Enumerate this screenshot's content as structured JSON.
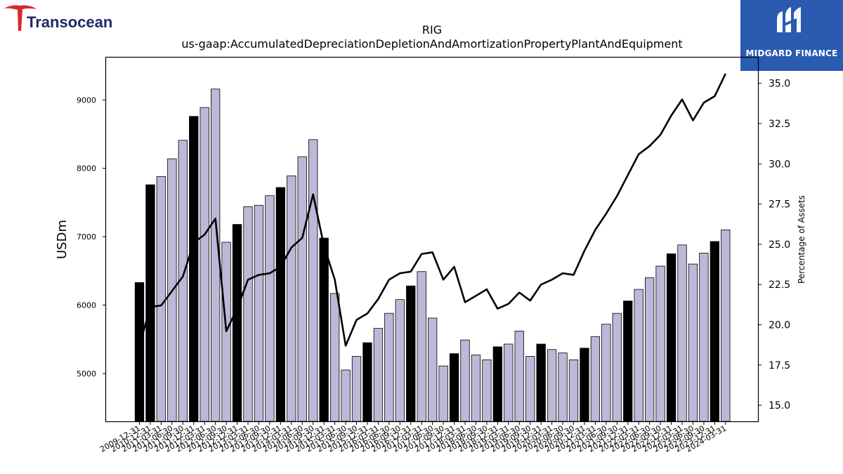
{
  "logos": {
    "left_brand": "Transocean",
    "right_brand": "MIDGARD FINANCE"
  },
  "chart_data": {
    "type": "bar",
    "title": "RIG",
    "subtitle": "us-gaap:AccumulatedDepreciationDepletionAndAmortizationPropertyPlantAndEquipment",
    "ylabel": "USDm",
    "y2label": "Percentage of Assets",
    "ylim": [
      4300,
      9620
    ],
    "y2lim": [
      14.0,
      36.6
    ],
    "yticks": [
      5000,
      6000,
      7000,
      8000,
      9000
    ],
    "y2ticks": [
      "15.0",
      "17.5",
      "20.0",
      "22.5",
      "25.0",
      "27.5",
      "30.0",
      "32.5",
      "35.0"
    ],
    "colors": {
      "annual": "#000000",
      "quarter": "#bcb8d8",
      "line": "#000000"
    },
    "categories": [
      "2009-12-31",
      "2010-12-31",
      "2011-03-31",
      "2011-06-30",
      "2011-09-30",
      "2011-12-31",
      "2012-03-31",
      "2012-06-30",
      "2012-09-30",
      "2012-12-31",
      "2013-03-31",
      "2013-06-30",
      "2013-09-30",
      "2013-12-31",
      "2014-03-31",
      "2014-06-30",
      "2014-09-30",
      "2014-12-31",
      "2015-03-31",
      "2015-06-30",
      "2015-09-30",
      "2015-12-31",
      "2016-03-31",
      "2016-06-30",
      "2016-09-30",
      "2016-12-31",
      "2017-03-31",
      "2017-06-30",
      "2017-09-30",
      "2017-12-31",
      "2018-03-31",
      "2018-06-30",
      "2018-09-30",
      "2018-12-31",
      "2019-03-31",
      "2019-06-30",
      "2019-09-30",
      "2019-12-31",
      "2020-03-31",
      "2020-06-30",
      "2020-09-30",
      "2020-12-31",
      "2021-03-31",
      "2021-06-30",
      "2021-09-30",
      "2021-12-31",
      "2022-03-31",
      "2022-06-30",
      "2022-09-30",
      "2022-12-31",
      "2023-03-31",
      "2023-06-30",
      "2023-09-30",
      "2023-12-31",
      "2024-03-31"
    ],
    "tick_labels": [
      "2009-12-31",
      "2010-12-31",
      "2011-03-31",
      "2011-06-30",
      "2011-09-30",
      "2011-12-31",
      "2012-03-31",
      "2012-06-30",
      "2012-09-30",
      "2012-12-31",
      "2013-03-31",
      "2013-06-30",
      "2013-09-30",
      "2013-12-31",
      "2014-03-31",
      "2014-06-30",
      "2014-09-30",
      "2014-12-31",
      "2015-03-31",
      "2015-06-30",
      "2015-09-30",
      "2015-12-31",
      "2016-03-31",
      "2016-06-30",
      "2016-09-30",
      "2016-12-31",
      "2017-03-31",
      "2017-06-30",
      "2017-09-30",
      "2017-12-31",
      "2018-03-31",
      "2018-06-30",
      "2018-09-30",
      "2018-12-31",
      "2019-03-31",
      "2019-06-30",
      "2019-09-30",
      "2019-12-31",
      "2020-03-31",
      "2020-06-30",
      "2020-09-30",
      "2020-12-31",
      "2021-03-31",
      "2021-06-30",
      "2021-09-30",
      "2021-12-31",
      "2022-03-31",
      "2022-06-30",
      "2022-09-30",
      "2022-12-31",
      "2023-03-31",
      "2023-06-30",
      "2023-09-30",
      "2023-12-31",
      "2024-03-31"
    ],
    "annual_flags": [
      1,
      1,
      0,
      0,
      0,
      1,
      0,
      0,
      0,
      1,
      0,
      0,
      0,
      1,
      0,
      0,
      0,
      1,
      0,
      0,
      0,
      1,
      0,
      0,
      0,
      1,
      0,
      0,
      0,
      1,
      0,
      0,
      0,
      1,
      0,
      0,
      0,
      1,
      0,
      0,
      0,
      1,
      0,
      0,
      0,
      1,
      0,
      0,
      0,
      1,
      0,
      0,
      0,
      1,
      0
    ],
    "series": [
      {
        "values": [
          6330,
          7760,
          7880,
          8140,
          8410,
          8760,
          8890,
          9160,
          6920,
          7180,
          7440,
          7460,
          7600,
          7720,
          7890,
          8170,
          8420,
          6980,
          6170,
          5050,
          5250,
          5450,
          5660,
          5880,
          6080,
          6280,
          6490,
          5810,
          5110,
          5290,
          5490,
          5270,
          5200,
          5390,
          5430,
          5620,
          5250,
          5430,
          5350,
          5300,
          5200,
          5370,
          5540,
          5720,
          5880,
          6060,
          6230,
          6400,
          6570,
          6750,
          6880,
          6600,
          6760,
          6930,
          7100
        ]
      },
      {
        "name": "Percentage of Assets",
        "axis": "right",
        "values": [
          18.7,
          21.1,
          21.2,
          22.1,
          23.0,
          25.1,
          25.6,
          26.6,
          19.6,
          21.0,
          22.8,
          23.1,
          23.2,
          23.6,
          24.8,
          25.4,
          28.1,
          24.9,
          22.8,
          18.7,
          20.3,
          20.7,
          21.6,
          22.8,
          23.2,
          23.3,
          24.4,
          24.5,
          22.8,
          23.6,
          21.4,
          21.8,
          22.2,
          21.0,
          21.3,
          22.0,
          21.5,
          22.5,
          22.8,
          23.2,
          23.1,
          24.6,
          25.9,
          26.9,
          28.0,
          29.3,
          30.6,
          31.1,
          31.8,
          33.0,
          34.0,
          32.7,
          33.8,
          34.2,
          35.6
        ]
      }
    ]
  }
}
